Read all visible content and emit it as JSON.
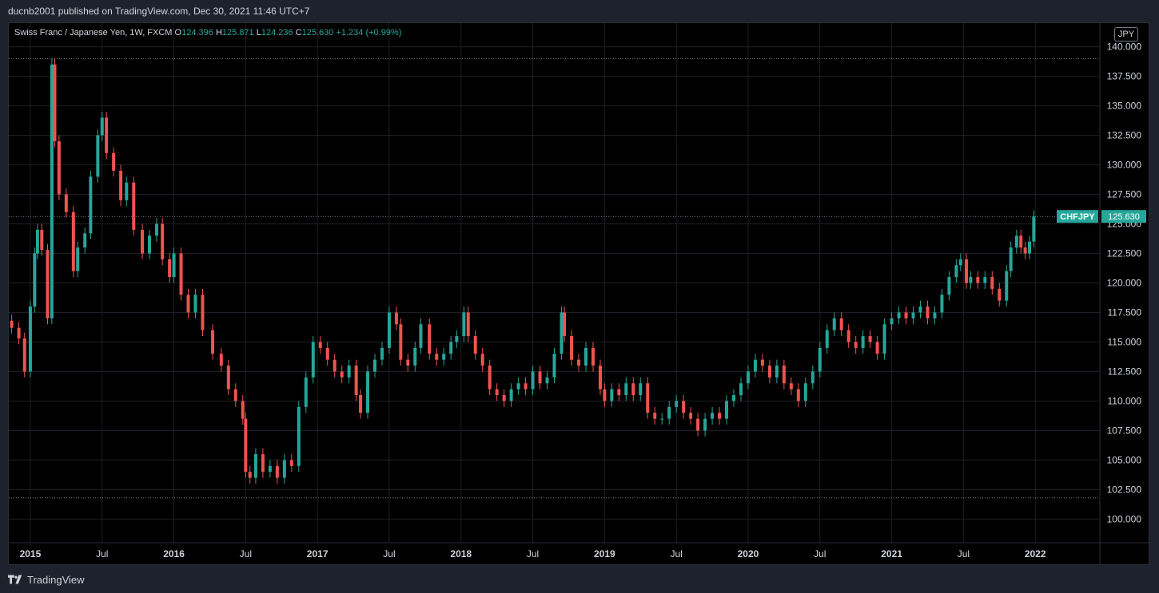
{
  "header": {
    "published": "ducnb2001 published on TradingView.com, Dec 30, 2021 11:46 UTC+7"
  },
  "legend": {
    "symbol": "Swiss Franc / Japanese Yen, 1W, FXCM",
    "o_label": "O",
    "o": "124.396",
    "h_label": "H",
    "h": "125.871",
    "l_label": "L",
    "l": "124.236",
    "c_label": "C",
    "c": "125.630",
    "change": "+1.234 (+0.99%)"
  },
  "currency_button": "JPY",
  "price_label": {
    "symbol": "CHFJPY",
    "value": "125.630"
  },
  "footer": {
    "brand": "TradingView"
  },
  "colors": {
    "up": "#26a69a",
    "down": "#ef5350",
    "background": "#000000",
    "grid": "#1c1f26",
    "text": "#d1d4dc"
  },
  "chart_data": {
    "type": "candlestick",
    "title": "Swiss Franc / Japanese Yen, 1W, FXCM",
    "ylim": [
      98,
      142
    ],
    "y_ticks": [
      "100.000",
      "102.500",
      "105.000",
      "107.500",
      "110.000",
      "112.500",
      "115.000",
      "117.500",
      "120.000",
      "122.500",
      "125.000",
      "127.500",
      "130.000",
      "132.500",
      "135.000",
      "137.500",
      "140.000"
    ],
    "x_ticks": [
      {
        "label": "2015",
        "t": 2015.0
      },
      {
        "label": "Jul",
        "t": 2015.5
      },
      {
        "label": "2016",
        "t": 2016.0
      },
      {
        "label": "Jul",
        "t": 2016.5
      },
      {
        "label": "2017",
        "t": 2017.0
      },
      {
        "label": "Jul",
        "t": 2017.5
      },
      {
        "label": "2018",
        "t": 2018.0
      },
      {
        "label": "Jul",
        "t": 2018.5
      },
      {
        "label": "2019",
        "t": 2019.0
      },
      {
        "label": "Jul",
        "t": 2019.5
      },
      {
        "label": "2020",
        "t": 2020.0
      },
      {
        "label": "Jul",
        "t": 2020.5
      },
      {
        "label": "2021",
        "t": 2021.0
      },
      {
        "label": "Jul",
        "t": 2021.5
      },
      {
        "label": "2022",
        "t": 2022.0
      }
    ],
    "x_range": [
      2014.85,
      2022.45
    ],
    "horizontal_lines": [
      139.0,
      125.63,
      101.8
    ],
    "last_close": 125.63,
    "series": [
      {
        "t": 2014.87,
        "c": 116.2
      },
      {
        "t": 2014.92,
        "c": 115.3
      },
      {
        "t": 2014.96,
        "c": 112.5
      },
      {
        "t": 2015.0,
        "c": 118
      },
      {
        "t": 2015.03,
        "c": 122.5
      },
      {
        "t": 2015.05,
        "c": 124.5
      },
      {
        "t": 2015.08,
        "c": 122.8
      },
      {
        "t": 2015.12,
        "c": 117
      },
      {
        "t": 2015.15,
        "c": 138.5
      },
      {
        "t": 2015.17,
        "c": 132.0
      },
      {
        "t": 2015.2,
        "c": 127.5
      },
      {
        "t": 2015.25,
        "c": 126.0
      },
      {
        "t": 2015.3,
        "c": 121.0
      },
      {
        "t": 2015.33,
        "c": 123.0
      },
      {
        "t": 2015.38,
        "c": 124.2
      },
      {
        "t": 2015.42,
        "c": 129.0
      },
      {
        "t": 2015.47,
        "c": 132.5
      },
      {
        "t": 2015.5,
        "c": 134.0
      },
      {
        "t": 2015.53,
        "c": 131.0
      },
      {
        "t": 2015.58,
        "c": 129.5
      },
      {
        "t": 2015.63,
        "c": 127.0
      },
      {
        "t": 2015.67,
        "c": 128.5
      },
      {
        "t": 2015.72,
        "c": 124.5
      },
      {
        "t": 2015.78,
        "c": 122.5
      },
      {
        "t": 2015.83,
        "c": 124.0
      },
      {
        "t": 2015.88,
        "c": 125.0
      },
      {
        "t": 2015.92,
        "c": 122.0
      },
      {
        "t": 2015.97,
        "c": 120.5
      },
      {
        "t": 2016.0,
        "c": 122.5
      },
      {
        "t": 2016.05,
        "c": 119.0
      },
      {
        "t": 2016.1,
        "c": 117.5
      },
      {
        "t": 2016.15,
        "c": 119.0
      },
      {
        "t": 2016.2,
        "c": 116.0
      },
      {
        "t": 2016.27,
        "c": 114.0
      },
      {
        "t": 2016.33,
        "c": 113.0
      },
      {
        "t": 2016.38,
        "c": 111.0
      },
      {
        "t": 2016.43,
        "c": 110.0
      },
      {
        "t": 2016.48,
        "c": 108.5
      },
      {
        "t": 2016.5,
        "c": 104.0
      },
      {
        "t": 2016.53,
        "c": 103.5
      },
      {
        "t": 2016.57,
        "c": 105.5
      },
      {
        "t": 2016.62,
        "c": 104.0
      },
      {
        "t": 2016.67,
        "c": 104.5
      },
      {
        "t": 2016.72,
        "c": 103.5
      },
      {
        "t": 2016.77,
        "c": 105.0
      },
      {
        "t": 2016.82,
        "c": 104.5
      },
      {
        "t": 2016.87,
        "c": 109.5
      },
      {
        "t": 2016.92,
        "c": 112.0
      },
      {
        "t": 2016.97,
        "c": 115.0
      },
      {
        "t": 2017.02,
        "c": 114.5
      },
      {
        "t": 2017.07,
        "c": 113.5
      },
      {
        "t": 2017.12,
        "c": 112.5
      },
      {
        "t": 2017.17,
        "c": 112.0
      },
      {
        "t": 2017.22,
        "c": 113.0
      },
      {
        "t": 2017.27,
        "c": 110.5
      },
      {
        "t": 2017.3,
        "c": 109.0
      },
      {
        "t": 2017.35,
        "c": 112.5
      },
      {
        "t": 2017.4,
        "c": 113.5
      },
      {
        "t": 2017.45,
        "c": 114.5
      },
      {
        "t": 2017.5,
        "c": 117.5
      },
      {
        "t": 2017.55,
        "c": 116.5
      },
      {
        "t": 2017.58,
        "c": 113.5
      },
      {
        "t": 2017.63,
        "c": 113.0
      },
      {
        "t": 2017.68,
        "c": 114.5
      },
      {
        "t": 2017.72,
        "c": 116.5
      },
      {
        "t": 2017.78,
        "c": 114.0
      },
      {
        "t": 2017.83,
        "c": 113.5
      },
      {
        "t": 2017.88,
        "c": 114.0
      },
      {
        "t": 2017.93,
        "c": 115.0
      },
      {
        "t": 2017.97,
        "c": 115.5
      },
      {
        "t": 2018.02,
        "c": 117.5
      },
      {
        "t": 2018.05,
        "c": 115.5
      },
      {
        "t": 2018.1,
        "c": 114.0
      },
      {
        "t": 2018.15,
        "c": 113.0
      },
      {
        "t": 2018.2,
        "c": 111.0
      },
      {
        "t": 2018.25,
        "c": 110.5
      },
      {
        "t": 2018.3,
        "c": 110.0
      },
      {
        "t": 2018.35,
        "c": 111.0
      },
      {
        "t": 2018.4,
        "c": 111.5
      },
      {
        "t": 2018.45,
        "c": 111.0
      },
      {
        "t": 2018.5,
        "c": 112.5
      },
      {
        "t": 2018.55,
        "c": 111.5
      },
      {
        "t": 2018.6,
        "c": 112.0
      },
      {
        "t": 2018.65,
        "c": 114.0
      },
      {
        "t": 2018.7,
        "c": 117.5
      },
      {
        "t": 2018.72,
        "c": 115.5
      },
      {
        "t": 2018.77,
        "c": 113.5
      },
      {
        "t": 2018.82,
        "c": 113.0
      },
      {
        "t": 2018.87,
        "c": 114.5
      },
      {
        "t": 2018.92,
        "c": 113.0
      },
      {
        "t": 2018.97,
        "c": 111.0
      },
      {
        "t": 2019.0,
        "c": 110.0
      },
      {
        "t": 2019.05,
        "c": 111.0
      },
      {
        "t": 2019.1,
        "c": 110.5
      },
      {
        "t": 2019.15,
        "c": 111.5
      },
      {
        "t": 2019.2,
        "c": 110.5
      },
      {
        "t": 2019.25,
        "c": 111.5
      },
      {
        "t": 2019.3,
        "c": 109.0
      },
      {
        "t": 2019.35,
        "c": 108.5
      },
      {
        "t": 2019.4,
        "c": 108.5
      },
      {
        "t": 2019.45,
        "c": 109.5
      },
      {
        "t": 2019.5,
        "c": 110.0
      },
      {
        "t": 2019.55,
        "c": 109.0
      },
      {
        "t": 2019.6,
        "c": 108.5
      },
      {
        "t": 2019.65,
        "c": 107.5
      },
      {
        "t": 2019.7,
        "c": 108.5
      },
      {
        "t": 2019.75,
        "c": 109.0
      },
      {
        "t": 2019.8,
        "c": 108.5
      },
      {
        "t": 2019.85,
        "c": 110.0
      },
      {
        "t": 2019.9,
        "c": 110.5
      },
      {
        "t": 2019.95,
        "c": 111.5
      },
      {
        "t": 2020.0,
        "c": 112.5
      },
      {
        "t": 2020.05,
        "c": 113.5
      },
      {
        "t": 2020.1,
        "c": 113.0
      },
      {
        "t": 2020.15,
        "c": 112.0
      },
      {
        "t": 2020.2,
        "c": 113.0
      },
      {
        "t": 2020.25,
        "c": 111.5
      },
      {
        "t": 2020.3,
        "c": 111.0
      },
      {
        "t": 2020.35,
        "c": 110.0
      },
      {
        "t": 2020.4,
        "c": 111.5
      },
      {
        "t": 2020.45,
        "c": 112.5
      },
      {
        "t": 2020.5,
        "c": 114.5
      },
      {
        "t": 2020.55,
        "c": 116.0
      },
      {
        "t": 2020.6,
        "c": 117.0
      },
      {
        "t": 2020.65,
        "c": 116.0
      },
      {
        "t": 2020.7,
        "c": 115.0
      },
      {
        "t": 2020.75,
        "c": 114.5
      },
      {
        "t": 2020.8,
        "c": 115.5
      },
      {
        "t": 2020.85,
        "c": 115.0
      },
      {
        "t": 2020.9,
        "c": 114.0
      },
      {
        "t": 2020.95,
        "c": 116.5
      },
      {
        "t": 2021.0,
        "c": 117.0
      },
      {
        "t": 2021.05,
        "c": 117.5
      },
      {
        "t": 2021.1,
        "c": 117.0
      },
      {
        "t": 2021.15,
        "c": 117.5
      },
      {
        "t": 2021.2,
        "c": 118.0
      },
      {
        "t": 2021.25,
        "c": 117.0
      },
      {
        "t": 2021.3,
        "c": 117.5
      },
      {
        "t": 2021.35,
        "c": 119.0
      },
      {
        "t": 2021.4,
        "c": 120.5
      },
      {
        "t": 2021.45,
        "c": 121.5
      },
      {
        "t": 2021.48,
        "c": 122.0
      },
      {
        "t": 2021.52,
        "c": 120.0
      },
      {
        "t": 2021.55,
        "c": 120.5
      },
      {
        "t": 2021.6,
        "c": 120.0
      },
      {
        "t": 2021.65,
        "c": 120.5
      },
      {
        "t": 2021.7,
        "c": 119.5
      },
      {
        "t": 2021.75,
        "c": 118.5
      },
      {
        "t": 2021.8,
        "c": 121.0
      },
      {
        "t": 2021.83,
        "c": 123.0
      },
      {
        "t": 2021.87,
        "c": 124.0
      },
      {
        "t": 2021.9,
        "c": 123.0
      },
      {
        "t": 2021.93,
        "c": 122.5
      },
      {
        "t": 2021.96,
        "c": 123.5
      },
      {
        "t": 2021.99,
        "c": 125.63
      }
    ]
  }
}
